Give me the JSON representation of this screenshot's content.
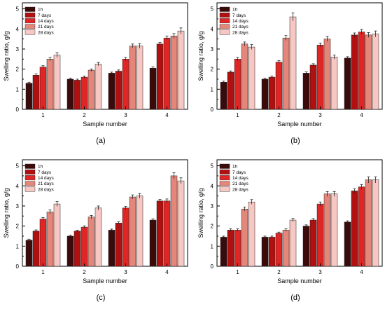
{
  "colors": [
    "#3b0a0a",
    "#b01010",
    "#e02525",
    "#e4867a",
    "#f6c7c3"
  ],
  "chart_data": [
    {
      "type": "bar",
      "panel_label": "(a)",
      "categories": [
        "1",
        "2",
        "3",
        "4"
      ],
      "xlabel": "Sample number",
      "ylabel": "Swelling ratio, g/g",
      "ylim": [
        0,
        5.3
      ],
      "yticks": [
        "0",
        "1",
        "2",
        "3",
        "4",
        "5"
      ],
      "legend_position": "top-left",
      "series": [
        {
          "name": "1h",
          "values": [
            1.3,
            1.5,
            1.8,
            2.05
          ],
          "errors": [
            0.05,
            0.05,
            0.05,
            0.06
          ]
        },
        {
          "name": "7 days",
          "values": [
            1.7,
            1.45,
            1.9,
            3.25
          ],
          "errors": [
            0.06,
            0.05,
            0.06,
            0.08
          ]
        },
        {
          "name": "14 days",
          "values": [
            2.1,
            1.6,
            2.5,
            3.55
          ],
          "errors": [
            0.07,
            0.05,
            0.08,
            0.1
          ]
        },
        {
          "name": "21 days",
          "values": [
            2.5,
            1.95,
            3.15,
            3.65
          ],
          "errors": [
            0.08,
            0.06,
            0.1,
            0.12
          ]
        },
        {
          "name": "28 days",
          "values": [
            2.7,
            2.25,
            3.15,
            3.9
          ],
          "errors": [
            0.12,
            0.08,
            0.12,
            0.15
          ]
        }
      ]
    },
    {
      "type": "bar",
      "panel_label": "(b)",
      "categories": [
        "1",
        "2",
        "3",
        "4"
      ],
      "xlabel": "Sample number",
      "ylabel": "Swelling ratio, g/g",
      "ylim": [
        0,
        5.3
      ],
      "yticks": [
        "0",
        "1",
        "2",
        "3",
        "4",
        "5"
      ],
      "legend_position": "top-left",
      "series": [
        {
          "name": "1h",
          "values": [
            1.35,
            1.5,
            1.8,
            2.55
          ],
          "errors": [
            0.05,
            0.05,
            0.06,
            0.07
          ]
        },
        {
          "name": "7 days",
          "values": [
            1.85,
            1.6,
            2.2,
            3.7
          ],
          "errors": [
            0.06,
            0.05,
            0.07,
            0.1
          ]
        },
        {
          "name": "14 days",
          "values": [
            2.5,
            2.35,
            3.2,
            3.85
          ],
          "errors": [
            0.08,
            0.07,
            0.1,
            0.12
          ]
        },
        {
          "name": "21 days",
          "values": [
            3.25,
            3.55,
            3.5,
            3.7
          ],
          "errors": [
            0.1,
            0.12,
            0.12,
            0.12
          ]
        },
        {
          "name": "28 days",
          "values": [
            3.1,
            4.6,
            2.6,
            3.75
          ],
          "errors": [
            0.12,
            0.2,
            0.1,
            0.15
          ]
        }
      ]
    },
    {
      "type": "bar",
      "panel_label": "(c)",
      "categories": [
        "1",
        "2",
        "3",
        "4"
      ],
      "xlabel": "Sample number",
      "ylabel": "Swelling ratio, g/g",
      "ylim": [
        0,
        5.3
      ],
      "yticks": [
        "0",
        "1",
        "2",
        "3",
        "4",
        "5"
      ],
      "legend_position": "top-left",
      "series": [
        {
          "name": "1h",
          "values": [
            1.3,
            1.5,
            1.8,
            2.3
          ],
          "errors": [
            0.05,
            0.05,
            0.05,
            0.06
          ]
        },
        {
          "name": "7 days",
          "values": [
            1.75,
            1.75,
            2.15,
            3.25
          ],
          "errors": [
            0.06,
            0.05,
            0.06,
            0.08
          ]
        },
        {
          "name": "14 days",
          "values": [
            2.35,
            1.95,
            2.9,
            3.25
          ],
          "errors": [
            0.07,
            0.06,
            0.08,
            0.1
          ]
        },
        {
          "name": "21 days",
          "values": [
            2.7,
            2.45,
            3.45,
            4.5
          ],
          "errors": [
            0.1,
            0.08,
            0.1,
            0.15
          ]
        },
        {
          "name": "28 days",
          "values": [
            3.1,
            2.9,
            3.5,
            4.25
          ],
          "errors": [
            0.12,
            0.1,
            0.12,
            0.15
          ]
        }
      ]
    },
    {
      "type": "bar",
      "panel_label": "(d)",
      "categories": [
        "1",
        "2",
        "3",
        "4"
      ],
      "xlabel": "Sample number",
      "ylabel": "Swelling ratio, g/g",
      "ylim": [
        0,
        5.3
      ],
      "yticks": [
        "0",
        "1",
        "2",
        "3",
        "4",
        "5"
      ],
      "legend_position": "top-left",
      "series": [
        {
          "name": "1h",
          "values": [
            1.45,
            1.45,
            2.0,
            2.2
          ],
          "errors": [
            0.05,
            0.05,
            0.06,
            0.06
          ]
        },
        {
          "name": "7 days",
          "values": [
            1.8,
            1.45,
            2.3,
            3.75
          ],
          "errors": [
            0.06,
            0.05,
            0.07,
            0.1
          ]
        },
        {
          "name": "14 days",
          "values": [
            1.8,
            1.65,
            3.1,
            3.95
          ],
          "errors": [
            0.06,
            0.05,
            0.1,
            0.12
          ]
        },
        {
          "name": "21 days",
          "values": [
            2.85,
            1.8,
            3.6,
            4.3
          ],
          "errors": [
            0.1,
            0.06,
            0.12,
            0.15
          ]
        },
        {
          "name": "28 days",
          "values": [
            3.2,
            2.3,
            3.6,
            4.3
          ],
          "errors": [
            0.12,
            0.08,
            0.12,
            0.15
          ]
        }
      ]
    }
  ]
}
